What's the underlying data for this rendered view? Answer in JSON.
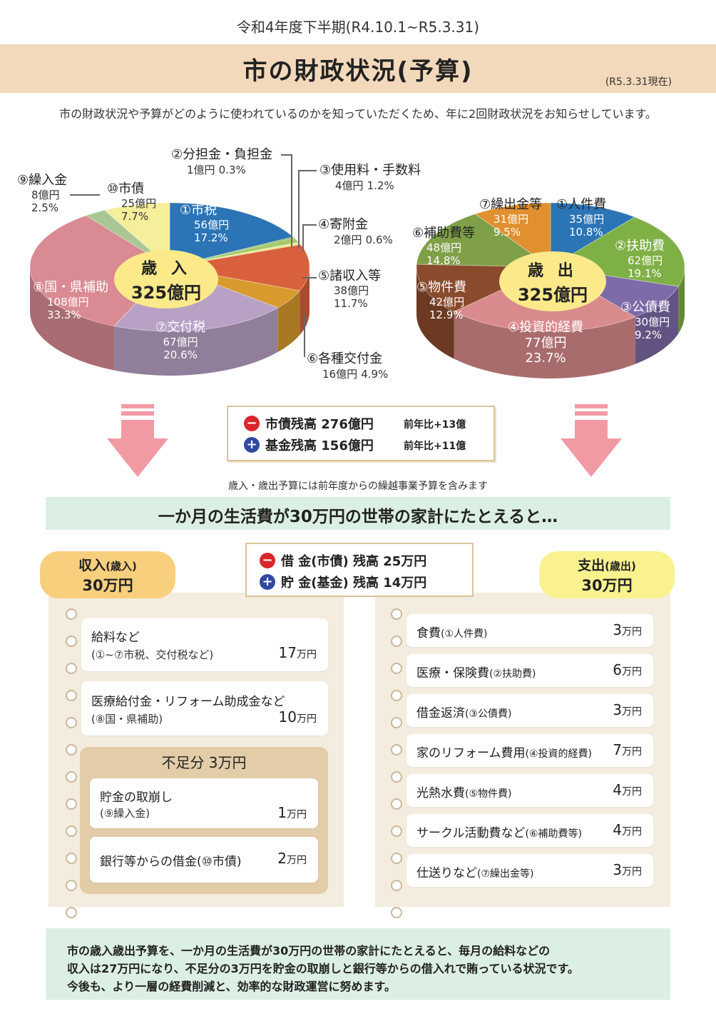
{
  "header": {
    "period": "令和4年度下半期(R4.10.1~R5.3.31)",
    "title": "市の財政状況(予算)",
    "as_of": "(R5.3.31現在)",
    "intro": "市の財政状況や予算がどのように使われているのかを知っていただくため、年に2回財政状況をお知らせしています。"
  },
  "revenue_chart": {
    "center_l1": "歳 入",
    "center_l2": "325億円",
    "colors": [
      "#2b74b5",
      "#7aaa4a",
      "#a6c96a",
      "#e8eb8a",
      "#d9603c",
      "#d89a2c",
      "#b9a1c6",
      "#d98a92",
      "#a9c795",
      "#f5ee9a"
    ],
    "labels": [
      {
        "name": "①市税",
        "amount": "56億円",
        "pct": "17.2%"
      },
      {
        "name": "②分担金・負担金",
        "amount": "1億円",
        "pct": "0.3%"
      },
      {
        "name": "③使用料・手数料",
        "amount": "4億円",
        "pct": "1.2%"
      },
      {
        "name": "④寄附金",
        "amount": "2億円",
        "pct": "0.6%"
      },
      {
        "name": "⑤諸収入等",
        "amount": "38億円",
        "pct": "11.7%"
      },
      {
        "name": "⑥各種交付金",
        "amount": "16億円",
        "pct": "4.9%"
      },
      {
        "name": "⑦交付税",
        "amount": "67億円",
        "pct": "20.6%"
      },
      {
        "name": "⑧国・県補助",
        "amount": "108億円",
        "pct": "33.3%"
      },
      {
        "name": "⑨繰入金",
        "amount": "8億円",
        "pct": "2.5%"
      },
      {
        "name": "⑩市債",
        "amount": "25億円",
        "pct": "7.7%"
      }
    ]
  },
  "expense_chart": {
    "center_l1": "歳 出",
    "center_l2": "325億円",
    "colors": [
      "#2b74b5",
      "#7fb046",
      "#7d6aa8",
      "#d98a8c",
      "#8a4a2c",
      "#7fa048",
      "#e0902e"
    ],
    "labels": [
      {
        "name": "①人件費",
        "amount": "35億円",
        "pct": "10.8%"
      },
      {
        "name": "②扶助費",
        "amount": "62億円",
        "pct": "19.1%"
      },
      {
        "name": "③公債費",
        "amount": "30億円",
        "pct": "9.2%"
      },
      {
        "name": "④投資的経費",
        "amount": "77億円",
        "pct": "23.7%"
      },
      {
        "name": "⑤物件費",
        "amount": "42億円",
        "pct": "12.9%"
      },
      {
        "name": "⑥補助費等",
        "amount": "48億円",
        "pct": "14.8%"
      },
      {
        "name": "⑦繰出金等",
        "amount": "31億円",
        "pct": "9.5%"
      }
    ]
  },
  "debt_box": {
    "minus_sign": "−",
    "plus_sign": "+",
    "bond_label": "市債残高 276億円",
    "bond_change": "前年比+13億",
    "fund_label": "基金残高 156億円",
    "fund_change": "前年比+11億"
  },
  "note": "歳入・歳出予算には前年度からの繰越事業予算を含みます",
  "banner": "一か月の生活費が30万円の世帯の家計にたとえると…",
  "income": {
    "pill_title": "収入",
    "pill_title_small": "(歳入)",
    "pill_amount": "30万円",
    "items": [
      {
        "name": "給料など",
        "sub": "(①~⑦市税、交付税など)",
        "amount": "17",
        "unit": "万円"
      },
      {
        "name": "医療給付金・リフォーム助成金など",
        "sub": "(⑧国・県補助)",
        "amount": "10",
        "unit": "万円"
      }
    ],
    "shortfall_title": "不足分 3万円",
    "shortfall_items": [
      {
        "name": "貯金の取崩し",
        "sub": "(⑨繰入金)",
        "amount": "1",
        "unit": "万円"
      },
      {
        "name": "銀行等からの借金(⑩市債)",
        "amount": "2",
        "unit": "万円"
      }
    ]
  },
  "household": {
    "debt_label": "借 金(市債) 残高 25万円",
    "savings_label": "貯 金(基金) 残高 14万円"
  },
  "expense": {
    "pill_title": "支出",
    "pill_title_small": "(歳出)",
    "pill_amount": "30万円",
    "items": [
      {
        "name": "食費",
        "note": "(①人件費)",
        "amount": "3",
        "unit": "万円"
      },
      {
        "name": "医療・保険費",
        "note": "(②扶助費)",
        "amount": "6",
        "unit": "万円"
      },
      {
        "name": "借金返済",
        "note": "(③公債費)",
        "amount": "3",
        "unit": "万円"
      },
      {
        "name": "家のリフォーム費用",
        "note": "(④投資的経費)",
        "amount": "7",
        "unit": "万円"
      },
      {
        "name": "光熱水費",
        "note": "(⑤物件費)",
        "amount": "4",
        "unit": "万円"
      },
      {
        "name": "サークル活動費など",
        "note": "(⑥補助費等)",
        "amount": "4",
        "unit": "万円"
      },
      {
        "name": "仕送りなど",
        "note": "(⑦繰出金等)",
        "amount": "3",
        "unit": "万円"
      }
    ]
  },
  "summary": {
    "line1": "市の歳入歳出予算を、一か月の生活費が30万円の世帯の家計にたとえると、毎月の給料などの",
    "line2": "収入は27万円になり、不足分の3万円を貯金の取崩しと銀行等からの借入れで賄っている状況です。",
    "line3": "今後も、より一層の経費削減と、効率的な財政運営に努めます。"
  }
}
